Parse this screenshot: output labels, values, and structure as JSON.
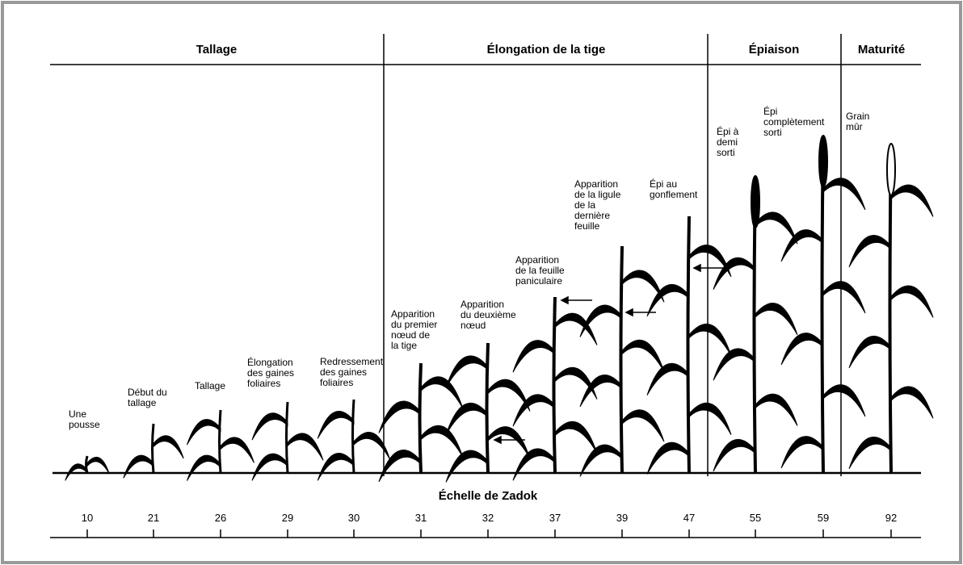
{
  "phases": [
    {
      "title": "Tallage"
    },
    {
      "title": "Élongation de la tige"
    },
    {
      "title": "Épiaison"
    },
    {
      "title": "Maturité"
    }
  ],
  "stages": [
    {
      "label": [
        "Une",
        "pousse"
      ],
      "code": "10"
    },
    {
      "label": [
        "Début du",
        "tallage"
      ],
      "code": "21"
    },
    {
      "label": [
        "Tallage"
      ],
      "code": "26"
    },
    {
      "label": [
        "Élongation",
        "des gaines",
        "foliaires"
      ],
      "code": "29"
    },
    {
      "label": [
        "Redressement",
        "des gaines",
        "foliaires"
      ],
      "code": "30"
    },
    {
      "label": [
        "Apparition",
        "du premier",
        "nœud de",
        "la tige"
      ],
      "code": "31"
    },
    {
      "label": [
        "Apparition",
        "du deuxième",
        "nœud"
      ],
      "code": "32"
    },
    {
      "label": [
        "Apparition",
        "de la feuille",
        "paniculaire"
      ],
      "code": "37"
    },
    {
      "label": [
        "Apparition",
        "de la ligule",
        "de la",
        "dernière",
        "feuille"
      ],
      "code": "39"
    },
    {
      "label": [
        "Épi au",
        "gonflement"
      ],
      "code": "47"
    },
    {
      "label": [
        "Épi à",
        "demi",
        "sorti"
      ],
      "code": "55"
    },
    {
      "label": [
        "Épi",
        "complètement",
        "sorti"
      ],
      "code": "59"
    },
    {
      "label": [
        "Grain",
        "mûr"
      ],
      "code": "92"
    }
  ],
  "scale_title": "Échelle de Zadok"
}
